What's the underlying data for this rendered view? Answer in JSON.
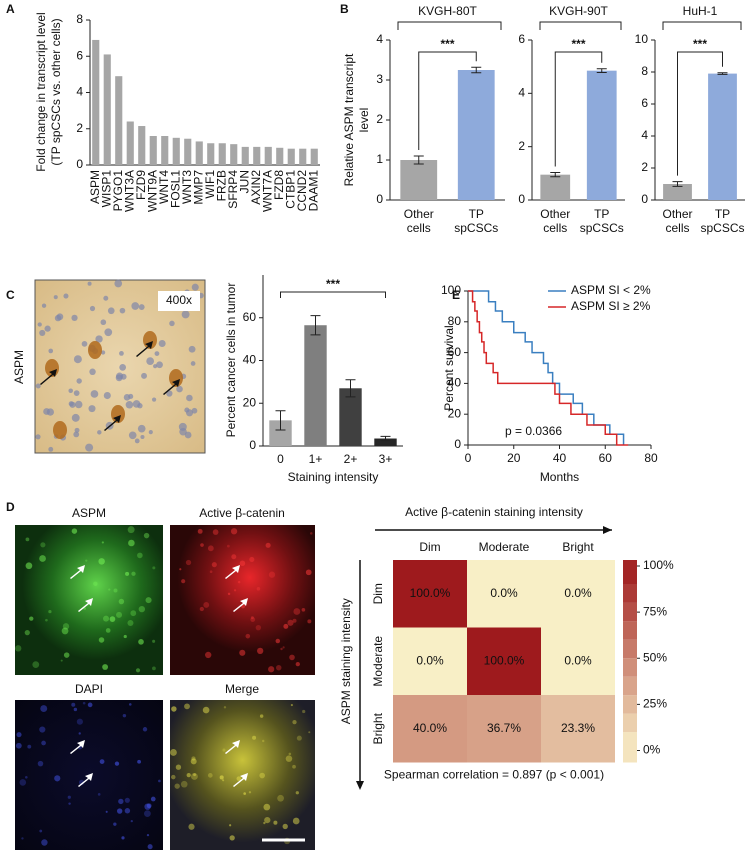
{
  "chart_data": [
    {
      "type": "bar",
      "panel": "A",
      "ylabel": [
        "Fold change in transcript level",
        "(TP spCSCs vs. other cells)"
      ],
      "categories": [
        "ASPM",
        "WISP1",
        "PYGO1",
        "WNT3A",
        "FZD9",
        "WNT9A",
        "WNT4",
        "FOSL1",
        "WNT3",
        "MMP7",
        "WIF1",
        "FRZB",
        "SFRP4",
        "JUN",
        "AXIN2",
        "WNT7A",
        "FZD8",
        "CTBP1",
        "CCND2",
        "DAAM1"
      ],
      "values": [
        6.9,
        6.1,
        4.9,
        2.4,
        2.15,
        1.6,
        1.6,
        1.5,
        1.45,
        1.3,
        1.2,
        1.2,
        1.15,
        1.0,
        1.0,
        1.0,
        0.95,
        0.9,
        0.9,
        0.9
      ],
      "color": "#a6a6a6",
      "ylim": [
        0,
        8
      ],
      "yticks": [
        0,
        2,
        4,
        6,
        8
      ]
    },
    {
      "type": "bar",
      "panel": "B",
      "title": "KVGH-80T",
      "ylabel": [
        "Relative ASPM transcript",
        "level"
      ],
      "categories": [
        [
          "Other",
          "cells"
        ],
        [
          "TP",
          "spCSCs"
        ]
      ],
      "values": [
        1.0,
        3.25
      ],
      "errors": [
        0.1,
        0.07
      ],
      "colors": [
        "#a6a6a6",
        "#8eaadb"
      ],
      "ylim": [
        0,
        4
      ],
      "yticks": [
        0,
        1,
        2,
        3,
        4
      ],
      "significance": "***"
    },
    {
      "type": "bar",
      "title": "KVGH-90T",
      "categories": [
        [
          "Other",
          "cells"
        ],
        [
          "TP",
          "spCSCs"
        ]
      ],
      "values": [
        0.95,
        4.85
      ],
      "errors": [
        0.08,
        0.07
      ],
      "colors": [
        "#a6a6a6",
        "#8eaadb"
      ],
      "ylim": [
        0,
        6
      ],
      "yticks": [
        0,
        2,
        4,
        6
      ],
      "significance": "***"
    },
    {
      "type": "bar",
      "title": "HuH-1",
      "categories": [
        [
          "Other",
          "cells"
        ],
        [
          "TP",
          "spCSCs"
        ]
      ],
      "values": [
        1.0,
        7.9
      ],
      "errors": [
        0.15,
        0.05
      ],
      "colors": [
        "#a6a6a6",
        "#8eaadb"
      ],
      "ylim": [
        0,
        10
      ],
      "yticks": [
        0,
        2,
        4,
        6,
        8,
        10
      ],
      "significance": "***"
    },
    {
      "type": "bar",
      "panel": "C",
      "ylabel": [
        "Percent cancer cells in tumor"
      ],
      "xlabel": "Staining intensity",
      "categories": [
        "0",
        "1+",
        "2+",
        "3+"
      ],
      "values": [
        12,
        56.5,
        27,
        3.5
      ],
      "errors": [
        4.5,
        4.5,
        4,
        1
      ],
      "colors": [
        "#a6a6a6",
        "#7f7f7f",
        "#404040",
        "#262626"
      ],
      "ylim": [
        0,
        80
      ],
      "yticks": [
        0,
        20,
        40,
        60
      ],
      "significance": "***"
    },
    {
      "type": "line",
      "panel": "E",
      "xlabel": "Months",
      "ylabel": [
        "Percent survival"
      ],
      "annotation": "p = 0.0366",
      "xlim": [
        0,
        80
      ],
      "xticks": [
        0,
        20,
        40,
        60,
        80
      ],
      "ylim": [
        0,
        100
      ],
      "yticks": [
        0,
        20,
        40,
        60,
        80,
        100
      ],
      "legend": "upper right",
      "series": [
        {
          "name": "ASPM SI < 2%",
          "color": "#3a7fc0",
          "x": [
            0,
            9,
            9,
            12,
            12,
            15,
            15,
            20,
            20,
            25,
            25,
            28,
            28,
            33,
            33,
            35,
            35,
            37,
            37,
            40,
            40,
            46,
            46,
            50,
            50,
            55,
            55,
            62,
            62,
            68,
            68
          ],
          "values": [
            100,
            100,
            93,
            93,
            87,
            87,
            80,
            80,
            73,
            73,
            67,
            67,
            60,
            60,
            53,
            53,
            47,
            47,
            40,
            40,
            33,
            33,
            27,
            27,
            20,
            20,
            13,
            13,
            7,
            7,
            0
          ]
        },
        {
          "name": "ASPM SI ≥ 2%",
          "color": "#d62728",
          "x": [
            0,
            2,
            2,
            3,
            3,
            4,
            4,
            5,
            5,
            6,
            6,
            7,
            7,
            8,
            8,
            11,
            11,
            13,
            13,
            38,
            38,
            40,
            40,
            45,
            45,
            52,
            52,
            60,
            60,
            65,
            65,
            70
          ],
          "values": [
            100,
            100,
            93,
            93,
            87,
            87,
            80,
            80,
            73,
            73,
            67,
            67,
            60,
            60,
            53,
            53,
            47,
            47,
            40,
            40,
            33,
            33,
            27,
            27,
            20,
            20,
            13,
            13,
            7,
            7,
            0,
            0
          ]
        }
      ]
    },
    {
      "type": "heatmap",
      "panel": "D",
      "title": "Active β-catenin staining intensity",
      "ylabel": [
        "ASPM staining intensity"
      ],
      "xcategories": [
        "Dim",
        "Moderate",
        "Bright"
      ],
      "ycategories": [
        "Dim",
        "Moderate",
        "Bright"
      ],
      "values": [
        [
          100,
          0,
          0
        ],
        [
          0,
          100,
          0
        ],
        [
          40,
          36.7,
          23.3
        ]
      ],
      "value_labels": [
        [
          "100.0%",
          "0.0%",
          "0.0%"
        ],
        [
          "0.0%",
          "100.0%",
          "0.0%"
        ],
        [
          "40.0%",
          "36.7%",
          "23.3%"
        ]
      ],
      "clim": [
        0,
        100
      ],
      "colors": [
        "#f8efc6",
        "#9e1a1d"
      ],
      "cticks": [
        {
          "value": 100,
          "label": "100%"
        },
        {
          "value": 75,
          "label": "75%"
        },
        {
          "value": 50,
          "label": "50%"
        },
        {
          "value": 25,
          "label": "25%"
        },
        {
          "value": 0,
          "label": "0%"
        }
      ],
      "annotation": "Spearman correlation = 0.897 (p < 0.001)"
    }
  ],
  "micrographs": {
    "C": {
      "label": "ASPM",
      "magnification": "400x"
    },
    "D": {
      "titles": [
        "ASPM",
        "Active β-catenin",
        "DAPI",
        "Merge"
      ]
    }
  }
}
